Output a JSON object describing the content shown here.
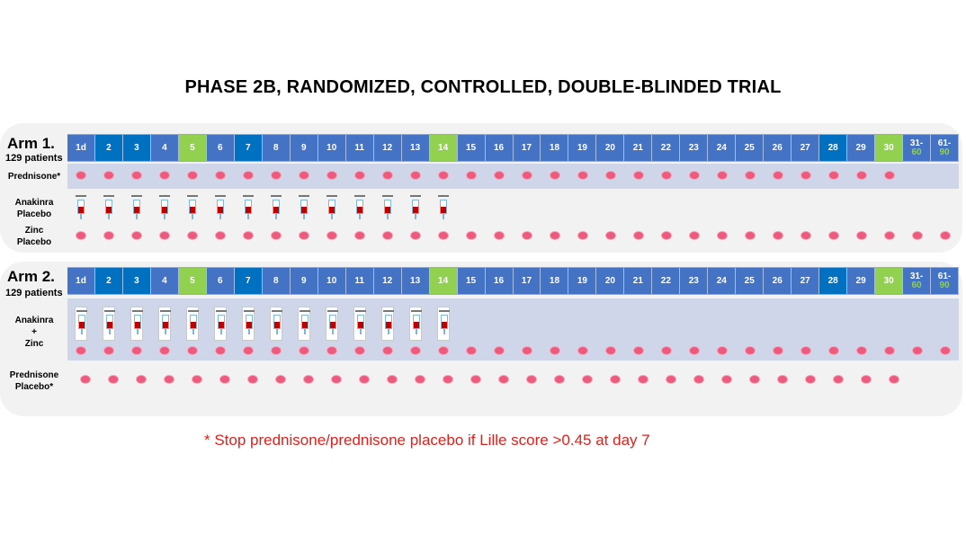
{
  "title": "PHASE 2B, RANDOMIZED, CONTROLLED, DOUBLE-BLINDED TRIAL",
  "colors": {
    "day": "#4472c4",
    "day_dark": "#0070c0",
    "day_green": "#92d050",
    "pill": "#ee5a7e",
    "footnote": "#e0201b"
  },
  "days": [
    {
      "l1": "1d",
      "l2": "",
      "style": "normal"
    },
    {
      "l1": "2",
      "l2": "",
      "style": "dark"
    },
    {
      "l1": "3",
      "l2": "",
      "style": "dark"
    },
    {
      "l1": "4",
      "l2": "",
      "style": "normal"
    },
    {
      "l1": "5",
      "l2": "",
      "style": "green"
    },
    {
      "l1": "6",
      "l2": "",
      "style": "normal"
    },
    {
      "l1": "7",
      "l2": "",
      "style": "dark"
    },
    {
      "l1": "8",
      "l2": "",
      "style": "normal"
    },
    {
      "l1": "9",
      "l2": "",
      "style": "normal"
    },
    {
      "l1": "10",
      "l2": "",
      "style": "normal"
    },
    {
      "l1": "11",
      "l2": "",
      "style": "normal"
    },
    {
      "l1": "12",
      "l2": "",
      "style": "normal"
    },
    {
      "l1": "13",
      "l2": "",
      "style": "normal"
    },
    {
      "l1": "14",
      "l2": "",
      "style": "green"
    },
    {
      "l1": "15",
      "l2": "",
      "style": "normal"
    },
    {
      "l1": "16",
      "l2": "",
      "style": "normal"
    },
    {
      "l1": "17",
      "l2": "",
      "style": "normal"
    },
    {
      "l1": "18",
      "l2": "",
      "style": "normal"
    },
    {
      "l1": "19",
      "l2": "",
      "style": "normal"
    },
    {
      "l1": "20",
      "l2": "",
      "style": "normal"
    },
    {
      "l1": "21",
      "l2": "",
      "style": "normal"
    },
    {
      "l1": "22",
      "l2": "",
      "style": "normal"
    },
    {
      "l1": "23",
      "l2": "",
      "style": "normal"
    },
    {
      "l1": "24",
      "l2": "",
      "style": "normal"
    },
    {
      "l1": "25",
      "l2": "",
      "style": "normal"
    },
    {
      "l1": "26",
      "l2": "",
      "style": "normal"
    },
    {
      "l1": "27",
      "l2": "",
      "style": "normal"
    },
    {
      "l1": "28",
      "l2": "",
      "style": "dark"
    },
    {
      "l1": "29",
      "l2": "",
      "style": "normal"
    },
    {
      "l1": "30",
      "l2": "",
      "style": "green"
    },
    {
      "l1": "31-",
      "l2": "60",
      "style": "normal"
    },
    {
      "l1": "61-",
      "l2": "90",
      "style": "normal"
    }
  ],
  "arm1": {
    "name": "Arm 1.",
    "patients": "129 patients",
    "prednisone_label": "Prednisone*",
    "anakinra_label": [
      "Anakinra",
      "Placebo"
    ],
    "zinc_label": [
      "Zinc",
      "Placebo"
    ],
    "prednisone_count": 30,
    "injection_count": 14,
    "zinc_count": 32
  },
  "arm2": {
    "name": "Arm 2.",
    "patients": "129 patients",
    "anakinra_label": [
      "Anakinra",
      "+",
      "Zinc"
    ],
    "prednisone_placebo_label": [
      "Prednisone",
      "Placebo*"
    ],
    "injection_count": 14,
    "zinc_count": 32,
    "prednisone_count": 30
  },
  "footnote": "* Stop prednisone/prednisone placebo if Lille score >0.45 at day 7"
}
